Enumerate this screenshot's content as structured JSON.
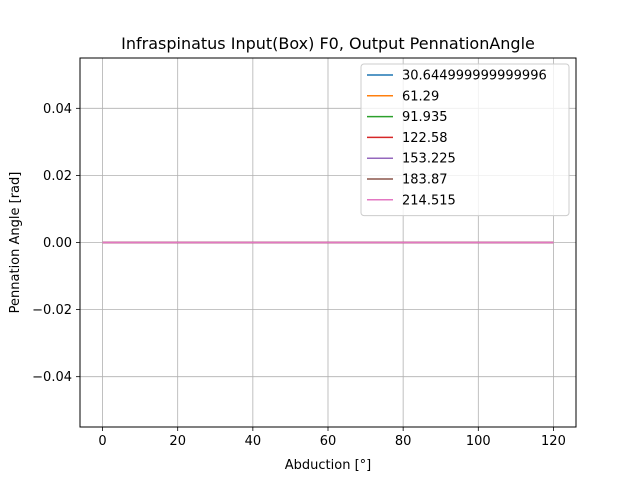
{
  "chart_data": {
    "type": "line",
    "title": "Infraspinatus Input(Box) F0, Output PennationAngle",
    "xlabel": "Abduction [°]",
    "ylabel": "Pennation Angle [rad]",
    "xlim": [
      -6,
      126
    ],
    "ylim": [
      -0.055,
      0.055
    ],
    "xticks": [
      0,
      20,
      40,
      60,
      80,
      100,
      120
    ],
    "xtick_labels": [
      "0",
      "20",
      "40",
      "60",
      "80",
      "100",
      "120"
    ],
    "yticks": [
      -0.04,
      -0.02,
      0.0,
      0.02,
      0.04
    ],
    "ytick_labels": [
      "−0.04",
      "−0.02",
      "0.00",
      "0.02",
      "0.04"
    ],
    "grid": true,
    "legend_position": "top-right",
    "x": [
      0,
      120
    ],
    "series": [
      {
        "name": "30.644999999999996",
        "color": "#1f77b4",
        "values": [
          0,
          0
        ]
      },
      {
        "name": "61.29",
        "color": "#ff7f0e",
        "values": [
          0,
          0
        ]
      },
      {
        "name": "91.935",
        "color": "#2ca02c",
        "values": [
          0,
          0
        ]
      },
      {
        "name": "122.58",
        "color": "#d62728",
        "values": [
          0,
          0
        ]
      },
      {
        "name": "153.225",
        "color": "#9467bd",
        "values": [
          0,
          0
        ]
      },
      {
        "name": "183.87",
        "color": "#8c564b",
        "values": [
          0,
          0
        ]
      },
      {
        "name": "214.515",
        "color": "#e377c2",
        "values": [
          0,
          0
        ]
      }
    ]
  }
}
